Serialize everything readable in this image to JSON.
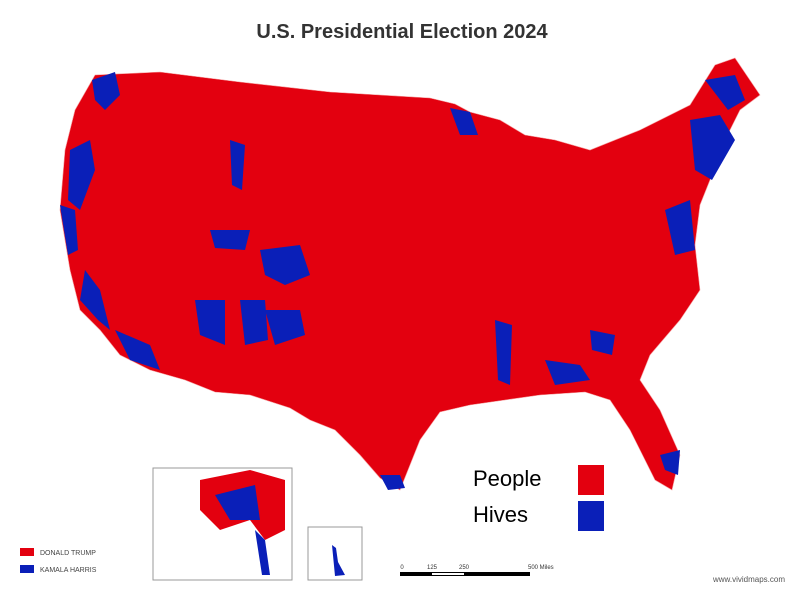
{
  "title": "U.S. Presidential Election 2024",
  "legend": [
    {
      "label": "DONALD TRUMP",
      "color": "#e3000f"
    },
    {
      "label": "KAMALA HARRIS",
      "color": "#0a1fb8"
    }
  ],
  "annotation_legend": [
    {
      "label": "People",
      "color": "#e3000f"
    },
    {
      "label": "Hives",
      "color": "#0a1fb8"
    }
  ],
  "scale_bar": {
    "labels": [
      "0",
      "125",
      "250",
      "500 Miles"
    ]
  },
  "credit": "www.vividmaps.com"
}
